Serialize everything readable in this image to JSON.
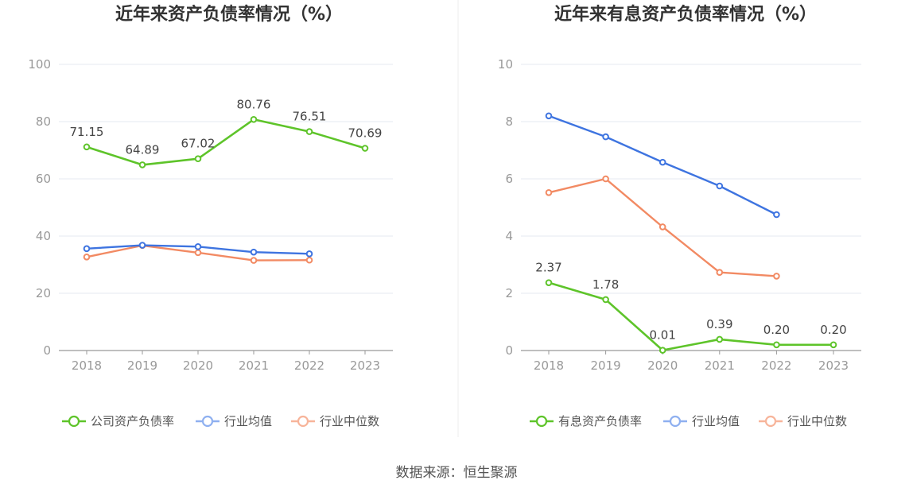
{
  "colors": {
    "company": "#5ec42a",
    "avg": "#3e74e0",
    "median": "#f28a63",
    "avg_legend": "#8fb0f0",
    "median_legend": "#f7b49a"
  },
  "source": "数据来源：恒生聚源",
  "chart_data": [
    {
      "type": "line",
      "title": "近年来资产负债率情况（%）",
      "x": [
        "2018",
        "2019",
        "2020",
        "2021",
        "2022",
        "2023"
      ],
      "ylim": [
        0,
        100
      ],
      "yticks": [
        "0",
        "20",
        "40",
        "60",
        "80",
        "100"
      ],
      "grid": true,
      "legend_position": "bottom",
      "series": [
        {
          "name": "公司资产负债率",
          "key": "company",
          "values": [
            71.15,
            64.89,
            67.02,
            80.76,
            76.51,
            70.69
          ],
          "labels": [
            "71.15",
            "64.89",
            "67.02",
            "80.76",
            "76.51",
            "70.69"
          ]
        },
        {
          "name": "行业均值",
          "key": "avg",
          "values": [
            35.6,
            36.8,
            36.3,
            34.4,
            33.8,
            null
          ]
        },
        {
          "name": "行业中位数",
          "key": "median",
          "values": [
            32.7,
            36.7,
            34.2,
            31.5,
            31.6,
            null
          ]
        }
      ]
    },
    {
      "type": "line",
      "title": "近年来有息资产负债率情况（%）",
      "x": [
        "2018",
        "2019",
        "2020",
        "2021",
        "2022",
        "2023"
      ],
      "ylim": [
        0,
        10
      ],
      "yticks": [
        "0",
        "2",
        "4",
        "6",
        "8",
        "10"
      ],
      "grid": true,
      "legend_position": "bottom",
      "series": [
        {
          "name": "有息资产负债率",
          "key": "company",
          "values": [
            2.37,
            1.78,
            0.01,
            0.39,
            0.2,
            0.2
          ],
          "labels": [
            "2.37",
            "1.78",
            "0.01",
            "0.39",
            "0.20",
            "0.20"
          ]
        },
        {
          "name": "行业均值",
          "key": "avg",
          "values": [
            8.2,
            7.47,
            6.58,
            5.75,
            4.75,
            null
          ]
        },
        {
          "name": "行业中位数",
          "key": "median",
          "values": [
            5.52,
            6.0,
            4.32,
            2.73,
            2.6,
            null
          ]
        }
      ]
    }
  ]
}
